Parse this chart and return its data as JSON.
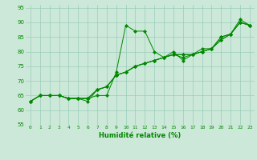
{
  "title": "",
  "xlabel": "Humidité relative (%)",
  "ylabel": "",
  "xlim": [
    -0.5,
    23.5
  ],
  "ylim": [
    55,
    96
  ],
  "yticks": [
    55,
    60,
    65,
    70,
    75,
    80,
    85,
    90,
    95
  ],
  "xticks": [
    0,
    1,
    2,
    3,
    4,
    5,
    6,
    7,
    8,
    9,
    10,
    11,
    12,
    13,
    14,
    15,
    16,
    17,
    18,
    19,
    20,
    21,
    22,
    23
  ],
  "bg_color": "#cce8d8",
  "grid_color": "#99ccbb",
  "line_color": "#008800",
  "series": [
    [
      63,
      65,
      65,
      65,
      64,
      64,
      64,
      65,
      65,
      73,
      89,
      87,
      87,
      80,
      78,
      80,
      77,
      79,
      81,
      81,
      85,
      86,
      91,
      89
    ],
    [
      63,
      65,
      65,
      65,
      64,
      64,
      64,
      67,
      68,
      72,
      73,
      75,
      76,
      77,
      78,
      79,
      79,
      79,
      80,
      81,
      85,
      86,
      90,
      89
    ],
    [
      63,
      65,
      65,
      65,
      64,
      64,
      64,
      67,
      68,
      72,
      73,
      75,
      76,
      77,
      78,
      79,
      79,
      79,
      80,
      81,
      84,
      86,
      90,
      89
    ],
    [
      63,
      65,
      65,
      65,
      64,
      64,
      63,
      67,
      68,
      72,
      73,
      75,
      76,
      77,
      78,
      79,
      78,
      79,
      80,
      81,
      84,
      86,
      90,
      89
    ]
  ]
}
